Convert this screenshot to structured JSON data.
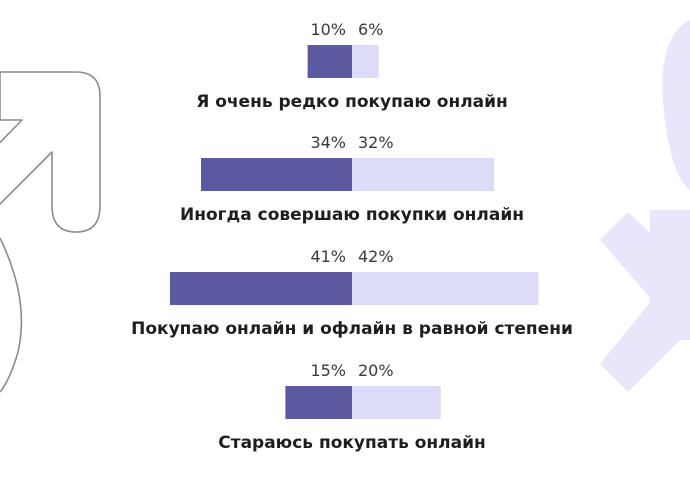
{
  "chart_data": {
    "type": "bar",
    "orientation": "diverging-horizontal",
    "categories": [
      "Я очень редко покупаю онлайн",
      "Иногда совершаю покупки онлайн",
      "Покупаю онлайн и офлайн в равной степени",
      "Стараюсь покупать онлайн"
    ],
    "series": [
      {
        "values": [
          10,
          34,
          41,
          15
        ],
        "color": "#5b5aa0",
        "side": "left"
      },
      {
        "values": [
          6,
          32,
          42,
          20
        ],
        "color": "#dcdcf8",
        "side": "right"
      }
    ],
    "value_labels": {
      "left": [
        "10%",
        "34%",
        "41%",
        "15%"
      ],
      "right": [
        "6%",
        "32%",
        "42%",
        "20%"
      ]
    },
    "unit": "%",
    "background_icons": [
      "male-symbol-icon",
      "female-symbol-icon"
    ],
    "colors": {
      "male_outline": "#8c8c8c",
      "female_fill": "#e8e6fb",
      "text": "#1e1e1e"
    }
  }
}
